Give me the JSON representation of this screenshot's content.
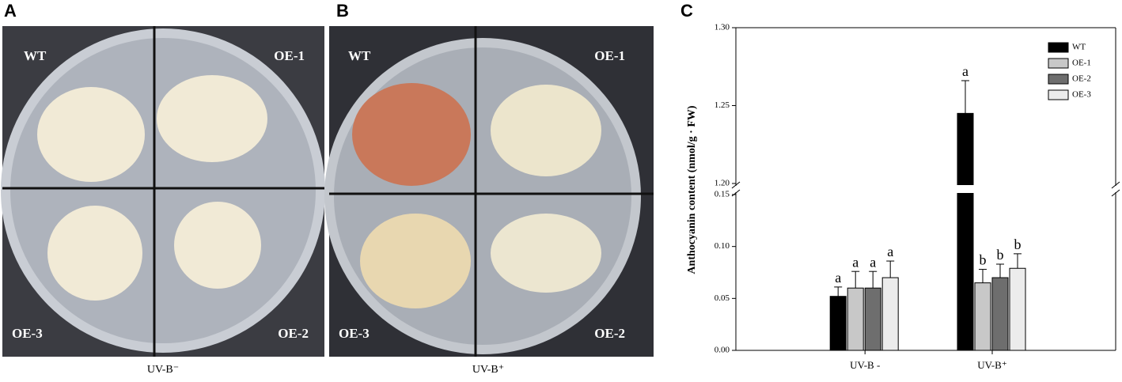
{
  "panel_a": {
    "letter": "A",
    "labels": [
      "WT",
      "OE-1",
      "OE-3",
      "OE-2"
    ],
    "caption": "UV-B⁻"
  },
  "panel_b": {
    "letter": "B",
    "labels": [
      "WT",
      "OE-1",
      "OE-3",
      "OE-2"
    ],
    "caption": "UV-B⁺"
  },
  "chart_data": {
    "type": "bar",
    "letter": "C",
    "y_label": "Anthocyanin content (nmol/g · FW)",
    "categories": [
      "UV-B -",
      "UV-B⁺"
    ],
    "series": [
      {
        "name": "WT",
        "color": "#000000",
        "values": [
          0.052,
          1.245
        ],
        "errors": [
          0.009,
          0.021
        ],
        "annotations": [
          "a",
          "a"
        ]
      },
      {
        "name": "OE-1",
        "color": "#c8c8c8",
        "values": [
          0.06,
          0.065
        ],
        "errors": [
          0.016,
          0.013
        ],
        "annotations": [
          "a",
          "b"
        ]
      },
      {
        "name": "OE-2",
        "color": "#6e6e6e",
        "values": [
          0.06,
          0.07
        ],
        "errors": [
          0.016,
          0.013
        ],
        "annotations": [
          "a",
          "b"
        ]
      },
      {
        "name": "OE-3",
        "color": "#ececec",
        "values": [
          0.07,
          0.079
        ],
        "errors": [
          0.016,
          0.014
        ],
        "annotations": [
          "a",
          "b"
        ]
      }
    ],
    "ylim": [
      0,
      1.3
    ],
    "axis_break": [
      0.15,
      1.2
    ],
    "yticks": [
      {
        "value": 0,
        "label": "0.00"
      },
      {
        "value": 0.05,
        "label": "0.05"
      },
      {
        "value": 0.1,
        "label": "0.10"
      },
      {
        "value": 0.15,
        "label": "0.15"
      },
      {
        "value": 1.2,
        "label": "1.20"
      },
      {
        "value": 1.25,
        "label": "1.25"
      },
      {
        "value": 1.3,
        "label": "1.30"
      }
    ],
    "legend": "top-right"
  }
}
